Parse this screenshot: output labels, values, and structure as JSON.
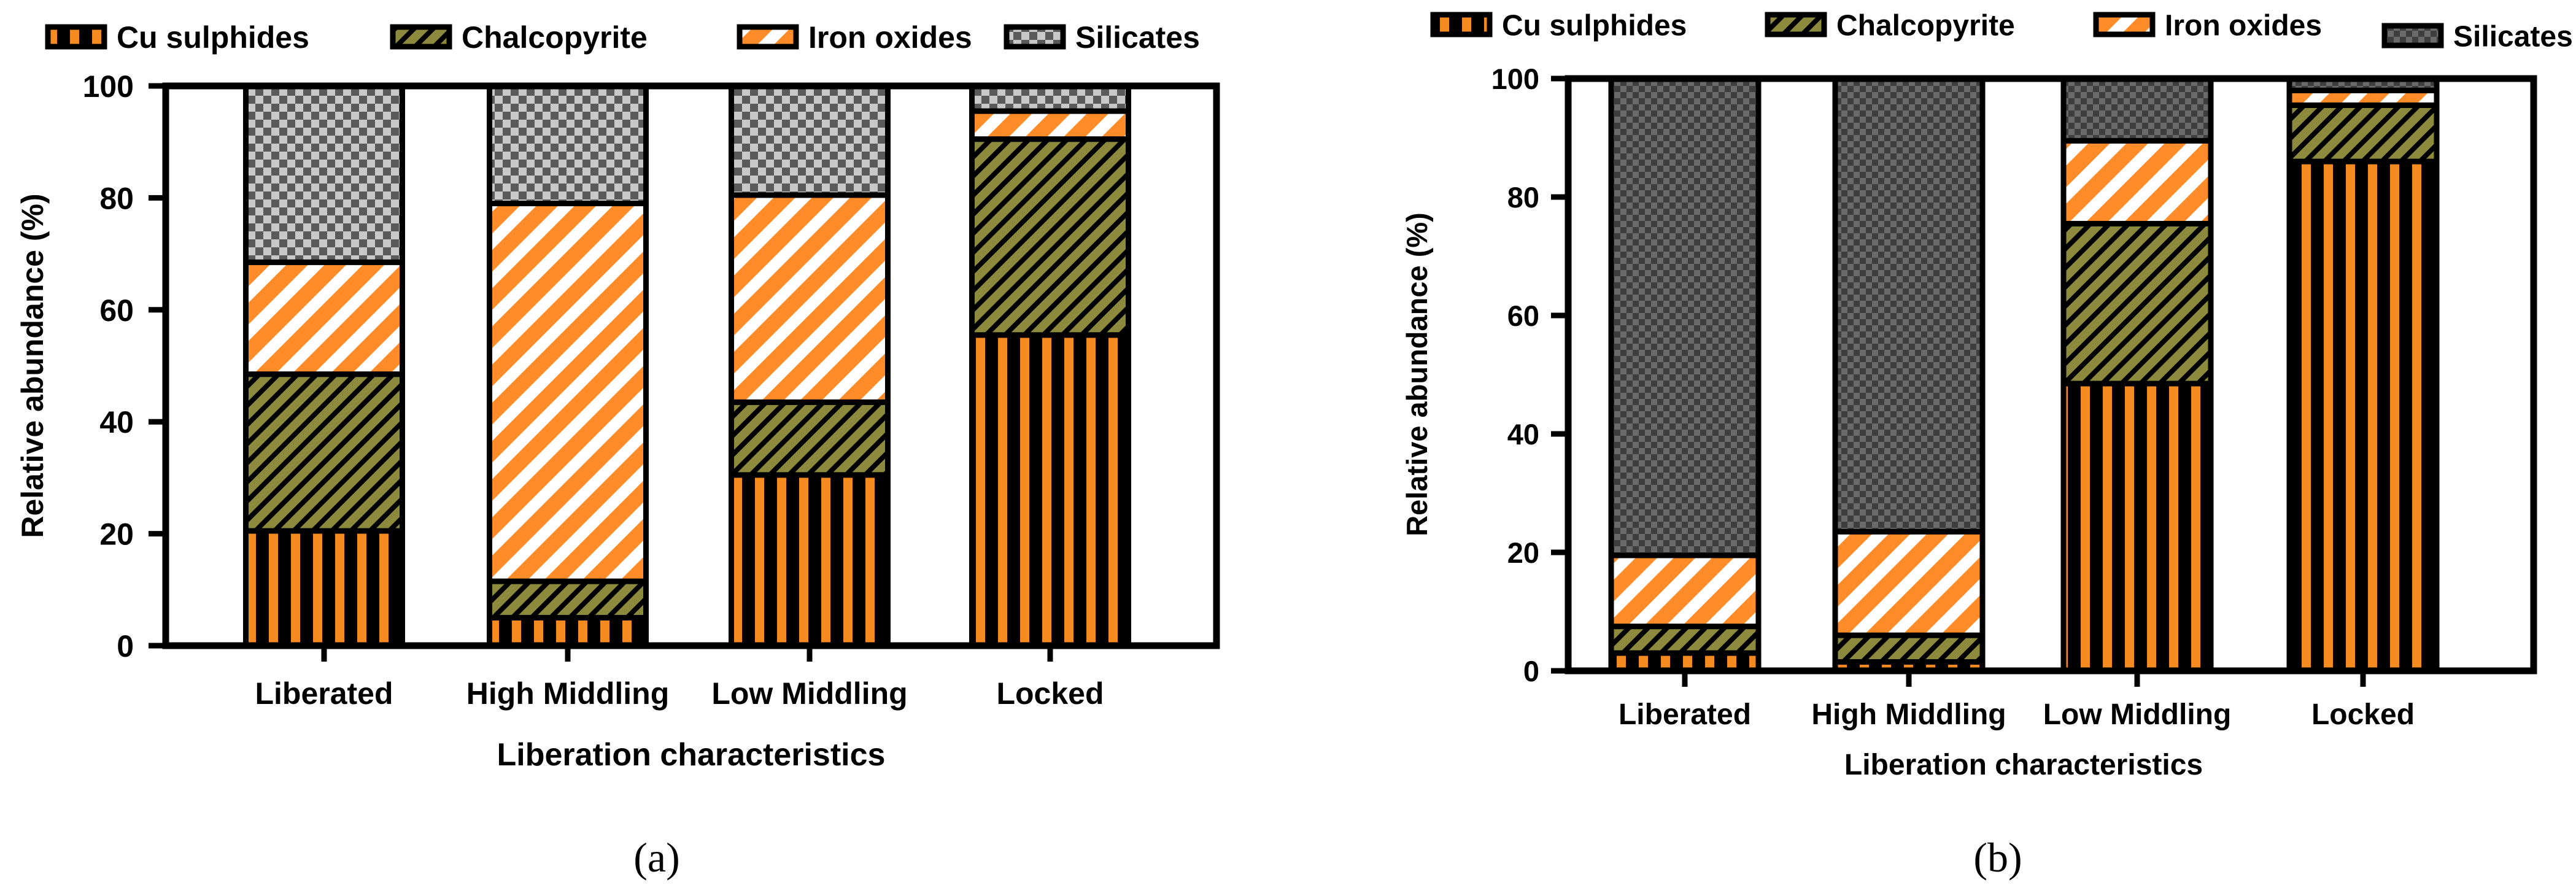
{
  "chart_data": [
    {
      "type": "bar",
      "stacked": true,
      "panel_label": "a",
      "categories": [
        "Liberated",
        "High Middling",
        "Low Middling",
        "Locked"
      ],
      "xlabel": "Liberation characteristics",
      "ylabel": "Relative abundance (%)",
      "ylim": [
        0,
        100
      ],
      "yticks": [
        0,
        20,
        40,
        60,
        80,
        100
      ],
      "legend_position": "top",
      "series": [
        {
          "name": "Cu sulphides",
          "pattern": "vertical-stripes",
          "color": "#F58A1F",
          "values": [
            20.5,
            5,
            30.5,
            55.5
          ]
        },
        {
          "name": "Chalcopyrite",
          "pattern": "diagonal-hatch",
          "color": "#8C8A3C",
          "values": [
            28,
            6.5,
            13,
            35
          ]
        },
        {
          "name": "Iron oxides",
          "pattern": "diagonal-stripes",
          "color": "#FF8C28",
          "values": [
            20,
            67.5,
            37,
            5
          ]
        },
        {
          "name": "Silicates",
          "pattern": "checker",
          "color": "#9A9A9A",
          "values": [
            31.5,
            21,
            19.5,
            4.5
          ]
        }
      ]
    },
    {
      "type": "bar",
      "stacked": true,
      "panel_label": "b",
      "categories": [
        "Liberated",
        "High Middling",
        "Low Middling",
        "Locked"
      ],
      "xlabel": "Liberation characteristics",
      "ylabel": "Relative abundance (%)",
      "ylim": [
        0,
        100
      ],
      "yticks": [
        0,
        20,
        40,
        60,
        80,
        100
      ],
      "legend_position": "top",
      "series": [
        {
          "name": "Cu sulphides",
          "pattern": "vertical-stripes",
          "color": "#F58A1F",
          "values": [
            3,
            1.5,
            48.5,
            86
          ]
        },
        {
          "name": "Chalcopyrite",
          "pattern": "diagonal-hatch",
          "color": "#8C8A3C",
          "values": [
            4.5,
            4.5,
            27,
            9.5
          ]
        },
        {
          "name": "Iron oxides",
          "pattern": "diagonal-stripes",
          "color": "#FF8C28",
          "values": [
            12,
            17.5,
            14,
            2.5
          ]
        },
        {
          "name": "Silicates",
          "pattern": "checker",
          "color": "#555555",
          "values": [
            80.5,
            76.5,
            10.5,
            2
          ]
        }
      ]
    }
  ],
  "captions": [
    "(a)",
    "(b)"
  ]
}
